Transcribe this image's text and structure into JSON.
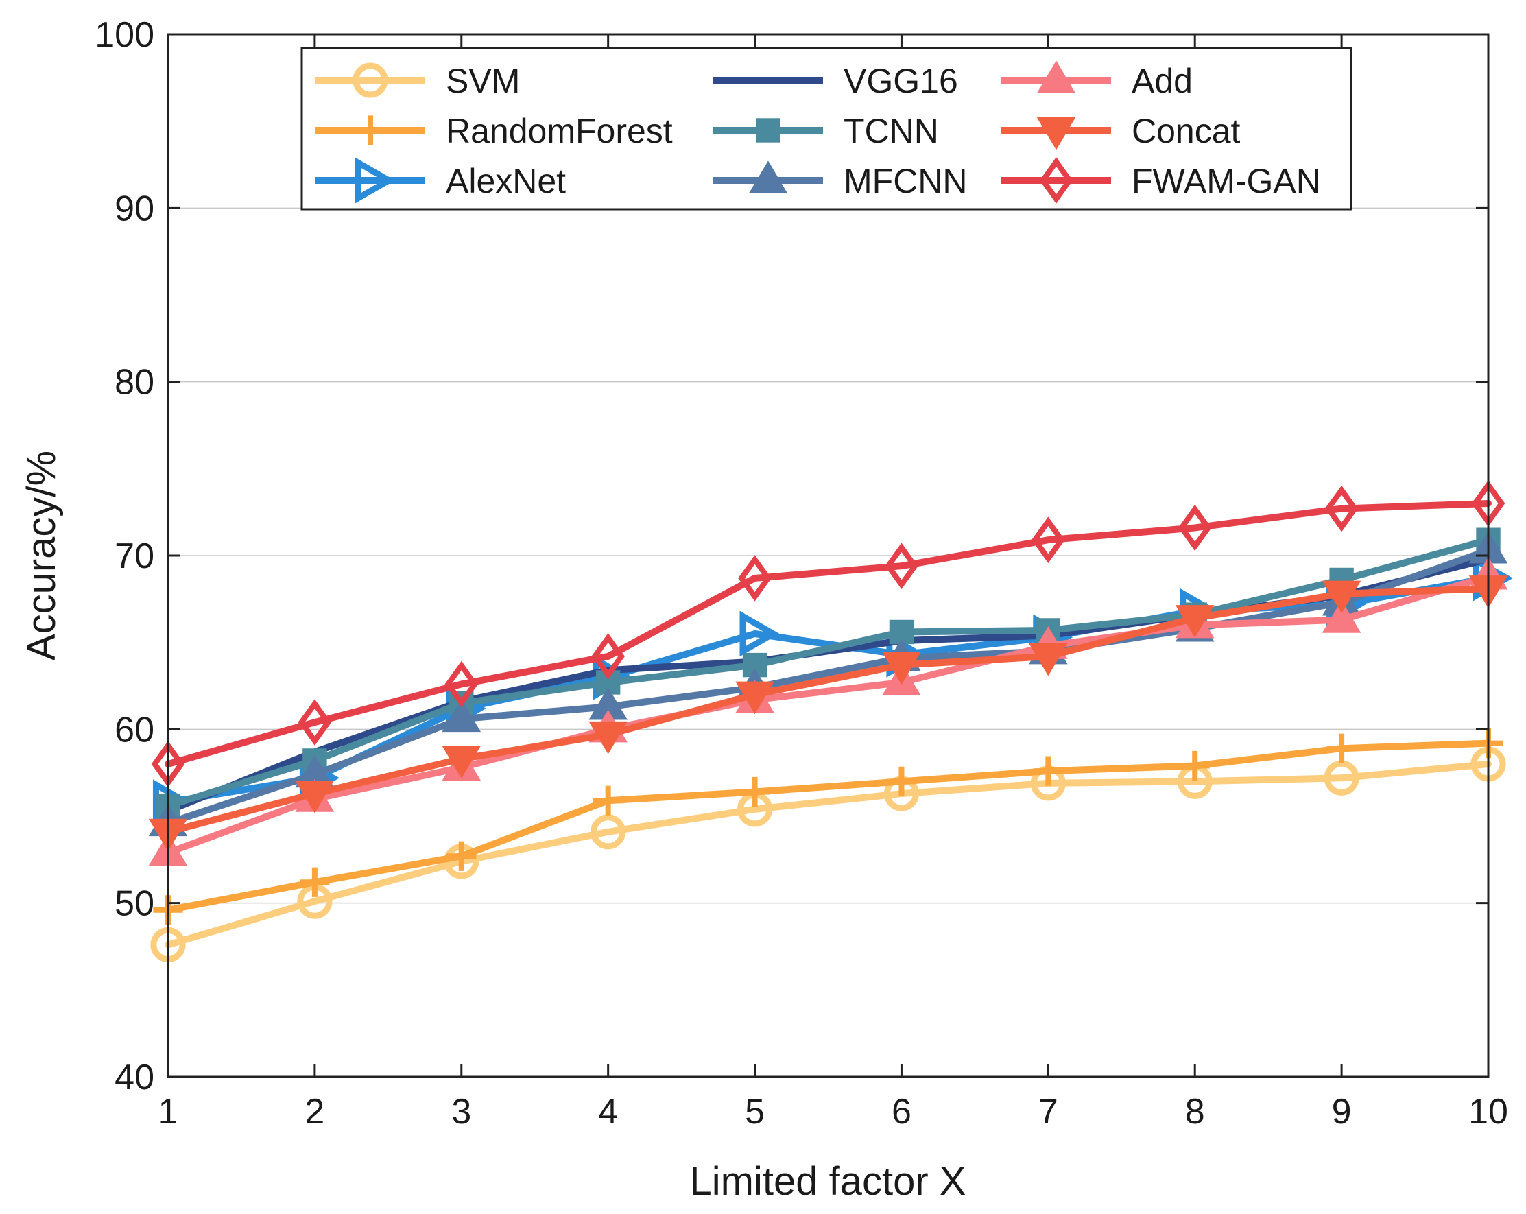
{
  "chart_data": {
    "type": "line",
    "title": "",
    "xlabel": "Limited factor X",
    "ylabel": "Accuracy/%",
    "x": [
      1,
      2,
      3,
      4,
      5,
      6,
      7,
      8,
      9,
      10
    ],
    "xlim": [
      1,
      10
    ],
    "ylim": [
      40,
      100
    ],
    "xticks": [
      "1",
      "2",
      "3",
      "4",
      "5",
      "6",
      "7",
      "8",
      "9",
      "10"
    ],
    "yticks": [
      "40",
      "50",
      "60",
      "70",
      "80",
      "90",
      "100"
    ],
    "legend_position": "top",
    "series": [
      {
        "name": "SVM",
        "color": "#FDCD7E",
        "marker": "circle",
        "values": [
          47.6,
          50.1,
          52.4,
          54.1,
          55.4,
          56.3,
          56.9,
          57.0,
          57.2,
          58.0
        ]
      },
      {
        "name": "RandomForest",
        "color": "#F9A53B",
        "marker": "plus",
        "values": [
          49.6,
          51.2,
          52.7,
          55.9,
          56.4,
          57.0,
          57.6,
          57.9,
          58.9,
          59.2
        ]
      },
      {
        "name": "AlexNet",
        "color": "#2A8BD8",
        "marker": "triangle-right",
        "values": [
          55.8,
          57.2,
          61.2,
          63.0,
          65.5,
          64.3,
          65.3,
          66.8,
          67.2,
          68.7
        ]
      },
      {
        "name": "VGG16",
        "color": "#2E4A8B",
        "marker": "none",
        "values": [
          55.3,
          58.7,
          61.6,
          63.4,
          63.9,
          65.1,
          65.4,
          66.6,
          67.7,
          69.8
        ]
      },
      {
        "name": "TCNN",
        "color": "#4A8A9E",
        "marker": "square",
        "values": [
          55.6,
          58.2,
          61.5,
          62.7,
          63.7,
          65.6,
          65.7,
          66.6,
          68.6,
          70.9
        ]
      },
      {
        "name": "MFCNN",
        "color": "#5479A6",
        "marker": "triangle-up",
        "values": [
          54.6,
          57.4,
          60.6,
          61.3,
          62.4,
          64.1,
          64.5,
          65.8,
          67.3,
          70.3
        ]
      },
      {
        "name": "Add",
        "color": "#F77A82",
        "marker": "triangle-up",
        "values": [
          52.9,
          56.0,
          57.8,
          60.0,
          61.7,
          62.7,
          64.8,
          66.0,
          66.3,
          68.8
        ]
      },
      {
        "name": "Concat",
        "color": "#F26040",
        "marker": "triangle-down",
        "values": [
          54.1,
          56.3,
          58.3,
          59.7,
          62.0,
          63.7,
          64.2,
          66.4,
          67.8,
          68.1
        ]
      },
      {
        "name": "FWAM-GAN",
        "color": "#E5404A",
        "marker": "diamond",
        "values": [
          58.0,
          60.4,
          62.6,
          64.2,
          68.7,
          69.4,
          70.9,
          71.6,
          72.7,
          73.0
        ]
      }
    ]
  }
}
